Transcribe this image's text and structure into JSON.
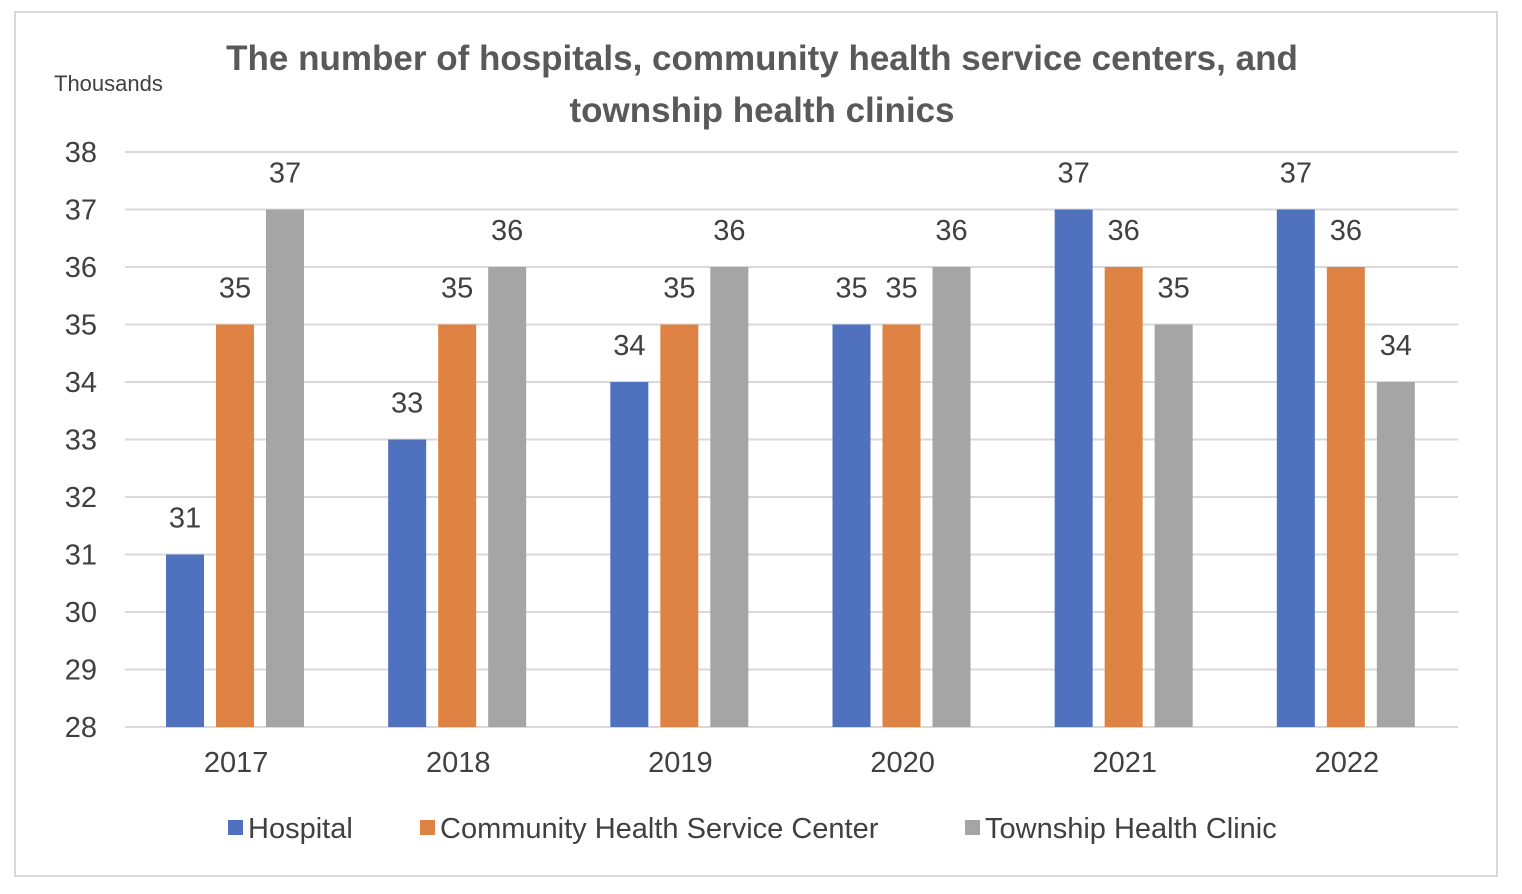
{
  "chart_data": {
    "type": "bar",
    "title_lines": [
      "The number of hospitals, community health service centers, and",
      "township health clinics"
    ],
    "unit_label": "Thousands",
    "categories": [
      "2017",
      "2018",
      "2019",
      "2020",
      "2021",
      "2022"
    ],
    "series": [
      {
        "name": "Hospital",
        "color": "#4F71BE",
        "values": [
          31,
          33,
          34,
          35,
          37,
          37
        ]
      },
      {
        "name": "Community Health Service Center",
        "color": "#DE8344",
        "values": [
          35,
          35,
          35,
          35,
          36,
          36
        ]
      },
      {
        "name": "Township Health Clinic",
        "color": "#A5A5A5",
        "values": [
          37,
          36,
          36,
          36,
          35,
          34
        ]
      }
    ],
    "ylim": [
      28,
      38
    ],
    "yticks": [
      28,
      29,
      30,
      31,
      32,
      33,
      34,
      35,
      36,
      37,
      38
    ],
    "grid": true,
    "legend_position": "bottom",
    "gridline_color": "#d9d9d9"
  }
}
